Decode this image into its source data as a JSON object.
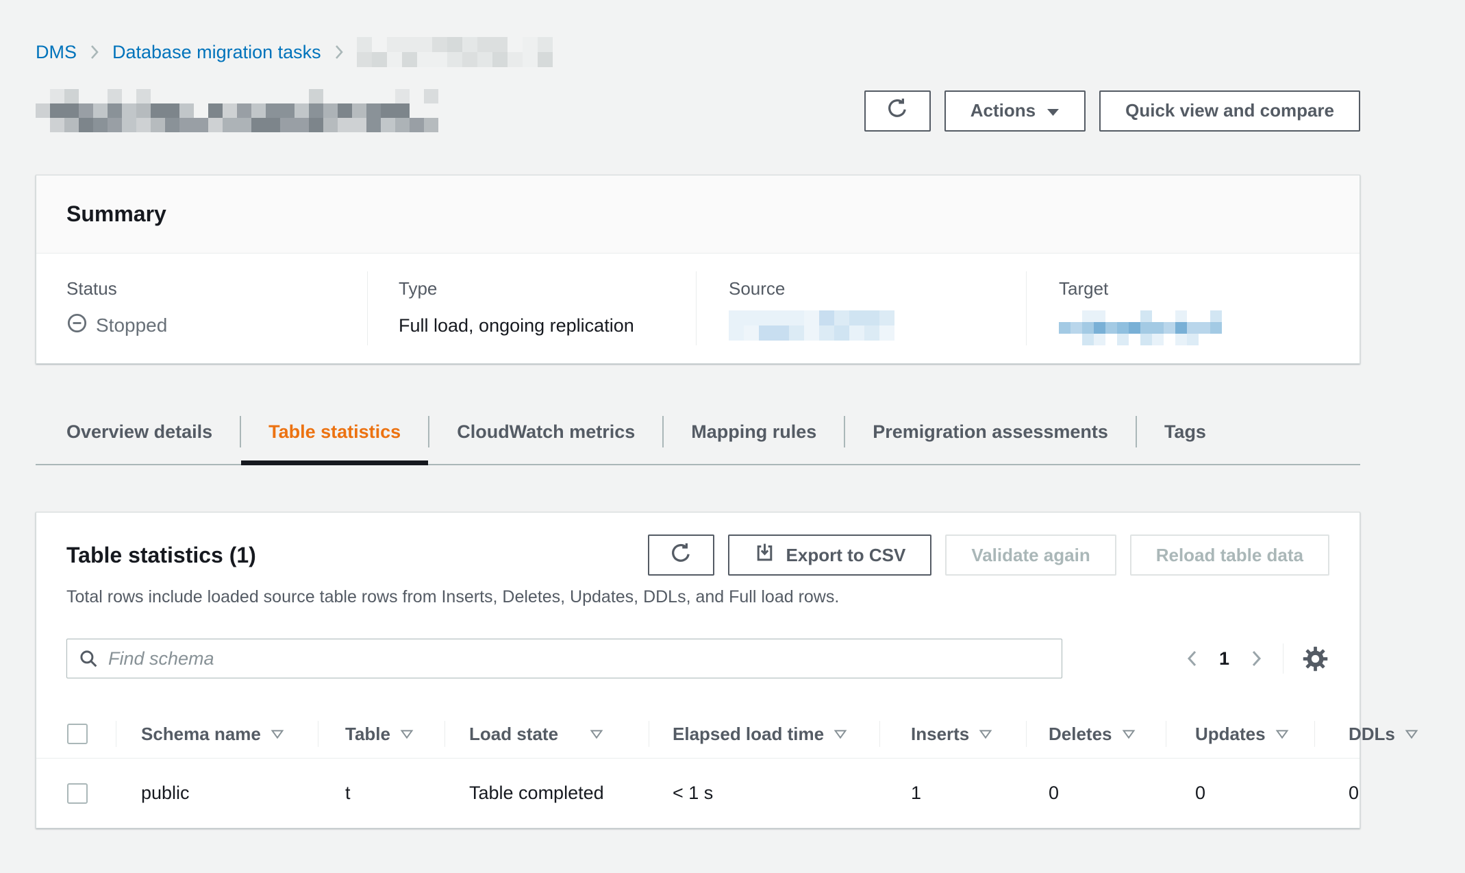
{
  "colors": {
    "link_blue": "#0073bb",
    "accent_orange": "#ec7211",
    "text_dark": "#16191f",
    "text_gray": "#545b64",
    "status_gray": "#687078"
  },
  "breadcrumb": {
    "items": [
      {
        "label": "DMS"
      },
      {
        "label": "Database migration tasks"
      },
      {
        "redacted": true
      }
    ]
  },
  "page_title": {
    "redacted": true
  },
  "toolbar": {
    "actions_label": "Actions",
    "quick_view_label": "Quick view and compare"
  },
  "summary": {
    "title": "Summary",
    "fields": [
      {
        "label": "Status",
        "value": "Stopped"
      },
      {
        "label": "Type",
        "value": "Full load, ongoing replication"
      },
      {
        "label": "Source",
        "redacted": true
      },
      {
        "label": "Target",
        "redacted": true
      }
    ]
  },
  "tabs": {
    "items": [
      {
        "label": "Overview details",
        "active": false
      },
      {
        "label": "Table statistics",
        "active": true
      },
      {
        "label": "CloudWatch metrics",
        "active": false
      },
      {
        "label": "Mapping rules",
        "active": false
      },
      {
        "label": "Premigration assessments",
        "active": false
      },
      {
        "label": "Tags",
        "active": false
      }
    ]
  },
  "table_panel": {
    "title": "Table statistics (1)",
    "description": "Total rows include loaded source table rows from Inserts, Deletes, Updates, DDLs, and Full load rows.",
    "buttons": {
      "export": {
        "label": "Export to CSV",
        "disabled": false
      },
      "validate": {
        "label": "Validate again",
        "disabled": true
      },
      "reload": {
        "label": "Reload table data",
        "disabled": true
      }
    },
    "search_placeholder": "Find schema",
    "pagination": {
      "page": "1"
    },
    "columns": [
      "Schema name",
      "Table",
      "Load state",
      "Elapsed load time",
      "Inserts",
      "Deletes",
      "Updates",
      "DDLs"
    ],
    "rows": [
      {
        "schema": "public",
        "table": "t",
        "load_state": "Table completed",
        "elapsed": "< 1 s",
        "inserts": "1",
        "deletes": "0",
        "updates": "0",
        "ddls": "0"
      }
    ]
  }
}
